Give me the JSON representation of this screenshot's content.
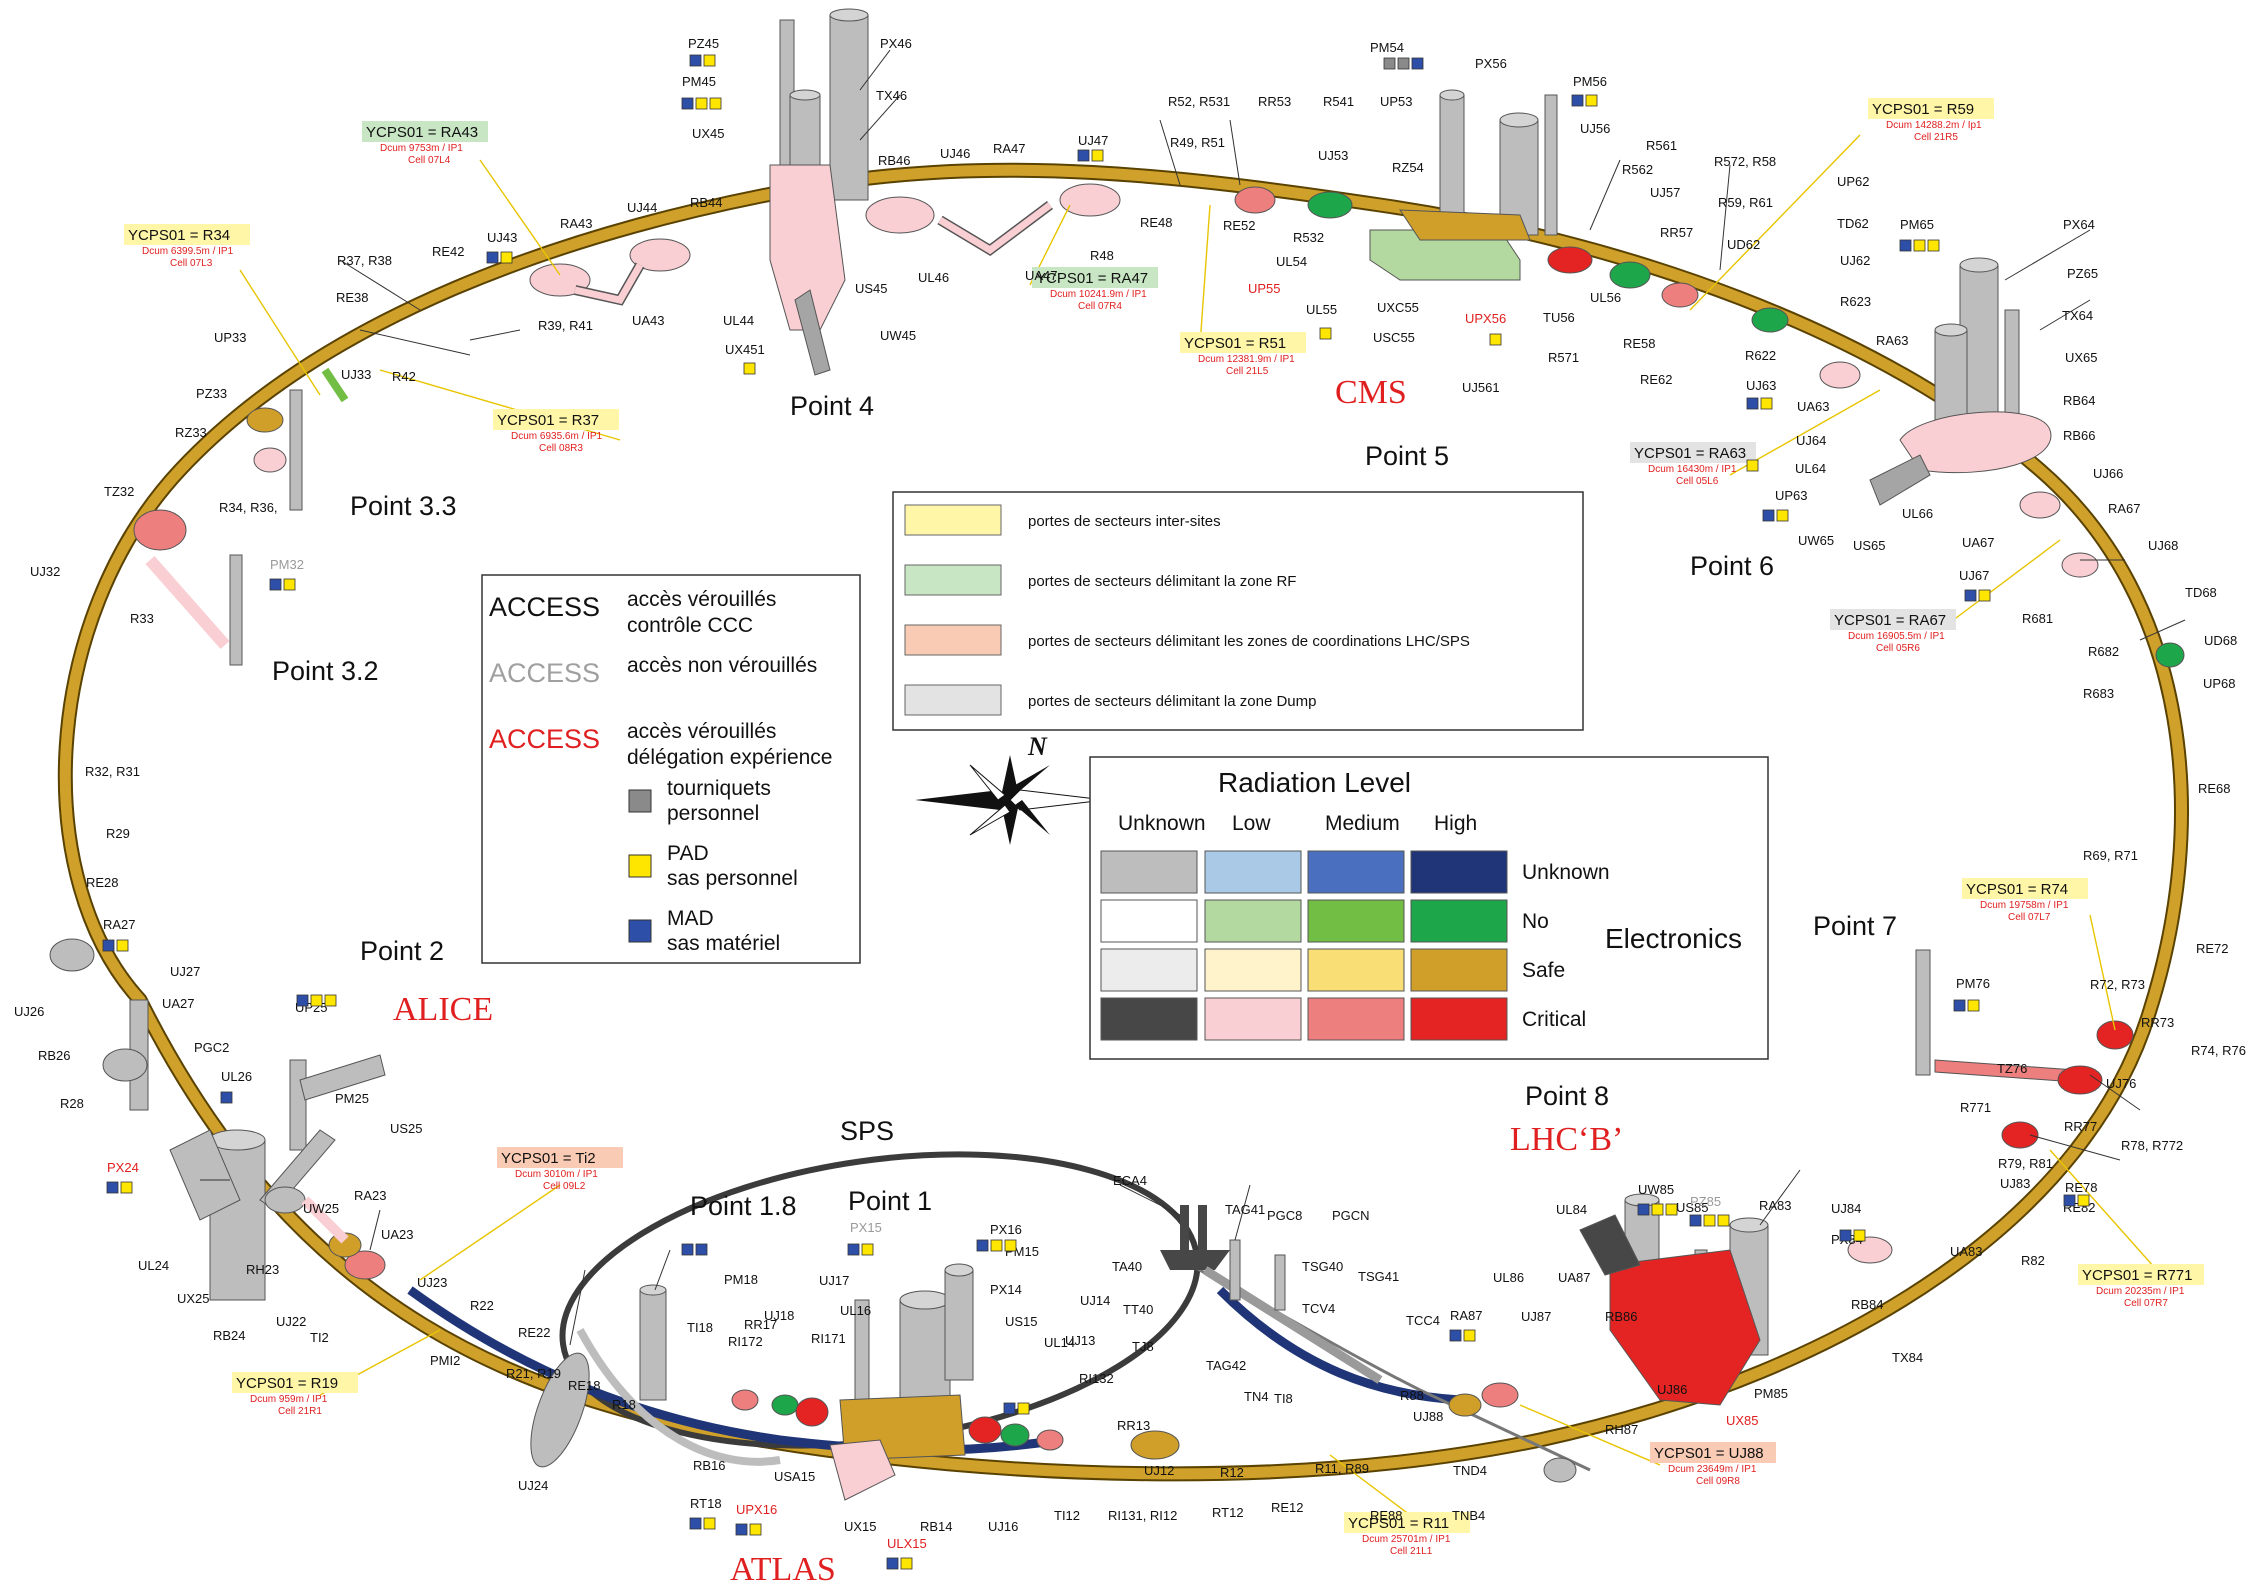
{
  "experiments": {
    "alice": "ALICE",
    "cms": "CMS",
    "atlas": "ATLAS",
    "lhcb": "LHC‘B’"
  },
  "points": {
    "p1": "Point 1",
    "p18": "Point 1.8",
    "p2": "Point 2",
    "p32": "Point 3.2",
    "p33": "Point 3.3",
    "p4": "Point 4",
    "p5": "Point 5",
    "p6": "Point 6",
    "p7": "Point 7",
    "p8": "Point 8",
    "sps": "SPS"
  },
  "ycps": [
    {
      "label": "YCPS01 = R34",
      "sub1": "Dcum 6399.5m / IP1",
      "sub2": "Cell 07L3",
      "tone": "yellow"
    },
    {
      "label": "YCPS01 = RA43",
      "sub1": "Dcum 9753m / IP1",
      "sub2": "Cell 07L4",
      "tone": "green"
    },
    {
      "label": "YCPS01 = R37",
      "sub1": "Dcum 6935.6m / IP1",
      "sub2": "Cell 08R3",
      "tone": "yellow"
    },
    {
      "label": "YCPS01 = RA47",
      "sub1": "Dcum 10241.9m / IP1",
      "sub2": "Cell 07R4",
      "tone": "green"
    },
    {
      "label": "YCPS01 = R51",
      "sub1": "Dcum 12381.9m / IP1",
      "sub2": "Cell 21L5",
      "tone": "yellow"
    },
    {
      "label": "YCPS01 = R59",
      "sub1": "Dcum 14288.2m / Ip1",
      "sub2": "Cell 21R5",
      "tone": "yellow"
    },
    {
      "label": "YCPS01 = RA63",
      "sub1": "Dcum 16430m / IP1",
      "sub2": "Cell 05L6",
      "tone": "grey"
    },
    {
      "label": "YCPS01 = RA67",
      "sub1": "Dcum 16905.5m / IP1",
      "sub2": "Cell 05R6",
      "tone": "grey"
    },
    {
      "label": "YCPS01 = R74",
      "sub1": "Dcum 19758m / IP1",
      "sub2": "Cell 07L7",
      "tone": "yellow"
    },
    {
      "label": "YCPS01 = R771",
      "sub1": "Dcum 20235m / IP1",
      "sub2": "Cell 07R7",
      "tone": "yellow"
    },
    {
      "label": "YCPS01 = Ti2",
      "sub1": "Dcum 3010m / IP1",
      "sub2": "Cell 09L2",
      "tone": "salmon"
    },
    {
      "label": "YCPS01 = R19",
      "sub1": "Dcum 959m / IP1",
      "sub2": "Cell 21R1",
      "tone": "yellow"
    },
    {
      "label": "YCPS01 = R11",
      "sub1": "Dcum 25701m / IP1",
      "sub2": "Cell 21L1",
      "tone": "yellow"
    },
    {
      "label": "YCPS01 = UJ88",
      "sub1": "Dcum 23649m / IP1",
      "sub2": "Cell 09R8",
      "tone": "salmon"
    }
  ],
  "legend_doors": [
    {
      "text": "portes de secteurs inter-sites",
      "color": "#fff6a8"
    },
    {
      "text": "portes de secteurs délimitant la zone RF",
      "color": "#c8e6c4"
    },
    {
      "text": "portes de secteurs délimitant les zones de coordinations LHC/SPS",
      "color": "#f9cbb4"
    },
    {
      "text": "portes de secteurs délimitant la zone Dump",
      "color": "#e3e3e3"
    }
  ],
  "legend_access": {
    "rows": [
      {
        "word": "ACCESS",
        "color": "#111111",
        "desc1": "accès vérouillés",
        "desc2": "contrôle CCC"
      },
      {
        "word": "ACCESS",
        "color": "#a0a0a0",
        "desc1": "accès non vérouillés",
        "desc2": ""
      },
      {
        "word": "ACCESS",
        "color": "#e02020",
        "desc1": "accès vérouillés",
        "desc2": "délégation expérience"
      }
    ],
    "symbols": [
      {
        "color": "#8a8a8a",
        "desc1": "tourniquets",
        "desc2": "personnel"
      },
      {
        "color": "#ffe600",
        "desc1": "PAD",
        "desc2": "sas personnel"
      },
      {
        "color": "#2e4fa8",
        "desc1": "MAD",
        "desc2": "sas matériel"
      }
    ]
  },
  "radiation": {
    "title": "Radiation Level",
    "cols": [
      "Unknown",
      "Low",
      "Medium",
      "High"
    ],
    "rows": [
      "Unknown",
      "No",
      "Safe",
      "Critical"
    ],
    "side": "Electronics",
    "colors": [
      [
        "#bdbdbd",
        "#a9c9e6",
        "#4a6fbf",
        "#1f3577"
      ],
      [
        "#ffffff",
        "#b3d9a0",
        "#72be44",
        "#1ea64a"
      ],
      [
        "#ececec",
        "#fff3cc",
        "#f8de74",
        "#cf9f2a"
      ],
      [
        "#474747",
        "#f9cfd3",
        "#ee7f7f",
        "#e32423"
      ]
    ]
  },
  "compass": {
    "north": "N"
  },
  "labels": [
    {
      "t": "PZ45"
    },
    {
      "t": "PX46"
    },
    {
      "t": "PM45"
    },
    {
      "t": "TX46"
    },
    {
      "t": "UX45"
    },
    {
      "t": "RB46"
    },
    {
      "t": "UJ46"
    },
    {
      "t": "RA47"
    },
    {
      "t": "UJ47"
    },
    {
      "t": "RB44"
    },
    {
      "t": "UJ44"
    },
    {
      "t": "RA43"
    },
    {
      "t": "UJ43"
    },
    {
      "t": "UA43"
    },
    {
      "t": "UL44"
    },
    {
      "t": "UX451"
    },
    {
      "t": "US45"
    },
    {
      "t": "UL46"
    },
    {
      "t": "UW45"
    },
    {
      "t": "UA47"
    },
    {
      "t": "R48"
    },
    {
      "t": "RE48"
    },
    {
      "t": "R49, R51"
    },
    {
      "t": "R52, R531"
    },
    {
      "t": "RR53"
    },
    {
      "t": "R541"
    },
    {
      "t": "UP53"
    },
    {
      "t": "PM54"
    },
    {
      "t": "PX56"
    },
    {
      "t": "PM56"
    },
    {
      "t": "UJ56"
    },
    {
      "t": "R561"
    },
    {
      "t": "R562"
    },
    {
      "t": "UJ53"
    },
    {
      "t": "RZ54"
    },
    {
      "t": "RE52"
    },
    {
      "t": "R532"
    },
    {
      "t": "UL54"
    },
    {
      "t": "UL55"
    },
    {
      "t": "UXC55"
    },
    {
      "t": "USC55"
    },
    {
      "t": "UJ561"
    },
    {
      "t": "TU56"
    },
    {
      "t": "UL56"
    },
    {
      "t": "UJ57"
    },
    {
      "t": "RR57"
    },
    {
      "t": "R571"
    },
    {
      "t": "RE58"
    },
    {
      "t": "R572, R58"
    },
    {
      "t": "R59, R61"
    },
    {
      "t": "UP62"
    },
    {
      "t": "UD62"
    },
    {
      "t": "TD62"
    },
    {
      "t": "UJ62"
    },
    {
      "t": "R622"
    },
    {
      "t": "RE62"
    },
    {
      "t": "R623"
    },
    {
      "t": "PM65"
    },
    {
      "t": "PX64"
    },
    {
      "t": "PZ65"
    },
    {
      "t": "TX64"
    },
    {
      "t": "RA63"
    },
    {
      "t": "UJ63"
    },
    {
      "t": "UA63"
    },
    {
      "t": "UJ64"
    },
    {
      "t": "UL64"
    },
    {
      "t": "UP63"
    },
    {
      "t": "UW65"
    },
    {
      "t": "US65"
    },
    {
      "t": "UL66"
    },
    {
      "t": "UX65"
    },
    {
      "t": "RB64"
    },
    {
      "t": "RB66"
    },
    {
      "t": "UJ66"
    },
    {
      "t": "RA67"
    },
    {
      "t": "UA67"
    },
    {
      "t": "UJ67"
    },
    {
      "t": "UJ68"
    },
    {
      "t": "TD68"
    },
    {
      "t": "UD68"
    },
    {
      "t": "UP68"
    },
    {
      "t": "R681"
    },
    {
      "t": "R682"
    },
    {
      "t": "R683"
    },
    {
      "t": "RE68"
    },
    {
      "t": "R69, R71"
    },
    {
      "t": "RE72"
    },
    {
      "t": "PM76"
    },
    {
      "t": "R72, R73"
    },
    {
      "t": "RR73"
    },
    {
      "t": "TZ76"
    },
    {
      "t": "R74, R76"
    },
    {
      "t": "UJ76"
    },
    {
      "t": "R771"
    },
    {
      "t": "RR77"
    },
    {
      "t": "R78, R772"
    },
    {
      "t": "R79, R81"
    },
    {
      "t": "RE78"
    },
    {
      "t": "UJ83"
    },
    {
      "t": "RE82"
    },
    {
      "t": "R82"
    },
    {
      "t": "UA83"
    },
    {
      "t": "UJ84"
    },
    {
      "t": "PX84"
    },
    {
      "t": "RA83"
    },
    {
      "t": "RB84"
    },
    {
      "t": "TX84"
    },
    {
      "t": "PM85"
    },
    {
      "t": "UW85"
    },
    {
      "t": "UL84"
    },
    {
      "t": "US85"
    },
    {
      "t": "UA87"
    },
    {
      "t": "UL86"
    },
    {
      "t": "RB86"
    },
    {
      "t": "UJ86"
    },
    {
      "t": "RH87"
    },
    {
      "t": "UJ87"
    },
    {
      "t": "RA87"
    },
    {
      "t": "UJ88"
    },
    {
      "t": "R88"
    },
    {
      "t": "TCC4"
    },
    {
      "t": "TSG41"
    },
    {
      "t": "PGCN"
    },
    {
      "t": "TCV4"
    },
    {
      "t": "TSG40"
    },
    {
      "t": "PGC8"
    },
    {
      "t": "TAG41"
    },
    {
      "t": "ECA4"
    },
    {
      "t": "TA40"
    },
    {
      "t": "TT40"
    },
    {
      "t": "TJ8"
    },
    {
      "t": "TAG42"
    },
    {
      "t": "TN4"
    },
    {
      "t": "TI8"
    },
    {
      "t": "TND4"
    },
    {
      "t": "TNB4"
    },
    {
      "t": "RE88"
    },
    {
      "t": "R11, R89"
    },
    {
      "t": "RE12"
    },
    {
      "t": "R12"
    },
    {
      "t": "RT12"
    },
    {
      "t": "UJ12"
    },
    {
      "t": "RI131, RI12"
    },
    {
      "t": "TI12"
    },
    {
      "t": "RR13"
    },
    {
      "t": "RI132"
    },
    {
      "t": "UJ13"
    },
    {
      "t": "UJ14"
    },
    {
      "t": "UL14"
    },
    {
      "t": "US15"
    },
    {
      "t": "PX14"
    },
    {
      "t": "PM15"
    },
    {
      "t": "PX16"
    },
    {
      "t": "UJ17"
    },
    {
      "t": "UL16"
    },
    {
      "t": "RI171"
    },
    {
      "t": "UJ18"
    },
    {
      "t": "PM18"
    },
    {
      "t": "RR17"
    },
    {
      "t": "RI172"
    },
    {
      "t": "TI18"
    },
    {
      "t": "RB16"
    },
    {
      "t": "USA15"
    },
    {
      "t": "UX15"
    },
    {
      "t": "RB14"
    },
    {
      "t": "UJ16"
    },
    {
      "t": "RT18"
    },
    {
      "t": "R18"
    },
    {
      "t": "RE18"
    },
    {
      "t": "R21, R19"
    },
    {
      "t": "RE22"
    },
    {
      "t": "R22"
    },
    {
      "t": "UJ23"
    },
    {
      "t": "UA23"
    },
    {
      "t": "RA23"
    },
    {
      "t": "RH23"
    },
    {
      "t": "UJ22"
    },
    {
      "t": "TI2"
    },
    {
      "t": "PMI2"
    },
    {
      "t": "UJ24"
    },
    {
      "t": "RB24"
    },
    {
      "t": "UX25"
    },
    {
      "t": "UL24"
    },
    {
      "t": "UW25"
    },
    {
      "t": "US25"
    },
    {
      "t": "PM25"
    },
    {
      "t": "UP25"
    },
    {
      "t": "UL26"
    },
    {
      "t": "PGC2"
    },
    {
      "t": "UA27"
    },
    {
      "t": "UJ27"
    },
    {
      "t": "RA27"
    },
    {
      "t": "UJ26"
    },
    {
      "t": "RB26"
    },
    {
      "t": "R28"
    },
    {
      "t": "RE28"
    },
    {
      "t": "R29"
    },
    {
      "t": "R32, R31"
    },
    {
      "t": "UJ32"
    },
    {
      "t": "TZ32"
    },
    {
      "t": "R33"
    },
    {
      "t": "RZ33"
    },
    {
      "t": "PZ33"
    },
    {
      "t": "UP33"
    },
    {
      "t": "UJ33"
    },
    {
      "t": "R34, R36,"
    },
    {
      "t": "R37, R38"
    },
    {
      "t": "RE38"
    },
    {
      "t": "R42"
    },
    {
      "t": "RE42"
    },
    {
      "t": "R39, R41"
    }
  ],
  "red_labels": [
    {
      "t": "UP55"
    },
    {
      "t": "UPX56"
    },
    {
      "t": "PX24"
    },
    {
      "t": "UPX16"
    },
    {
      "t": "ULX15"
    },
    {
      "t": "UX85"
    }
  ],
  "grey_labels": [
    {
      "t": "PM32"
    },
    {
      "t": "PX15"
    },
    {
      "t": "PZ85"
    }
  ]
}
